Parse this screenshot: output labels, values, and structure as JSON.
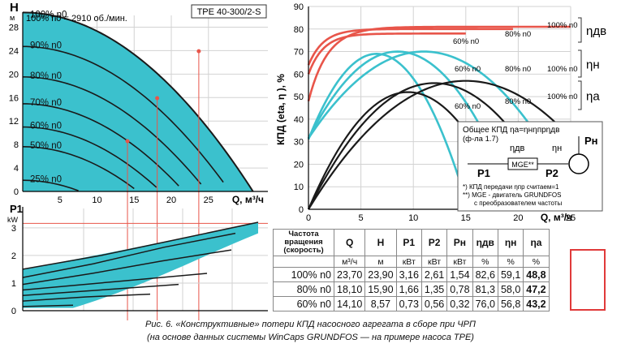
{
  "colors": {
    "teal": "#3bc1cd",
    "red": "#e8554a",
    "black": "#1a1a1a",
    "grid": "#d2d2d2",
    "highlight": "#e03a3a"
  },
  "head_chart": {
    "pump_label": "TPE 40-300/2-S",
    "speed_note": "100% n0 = 2910 об./мин.",
    "y_axis_label": "H",
    "y_axis_unit": "м",
    "x_axis_label": "Q, м³/ч",
    "x_ticks": [
      5,
      10,
      15,
      20,
      25
    ],
    "y_ticks": [
      0,
      4,
      8,
      12,
      16,
      20,
      24,
      28
    ],
    "curves": [
      {
        "label": "100% n0",
        "pct": 100,
        "h0": 30.5,
        "qmax": 31
      },
      {
        "label": "90% n0",
        "pct": 90,
        "h0": 24.7
      },
      {
        "label": "80% n0",
        "pct": 80,
        "h0": 19.5
      },
      {
        "label": "70% n0",
        "pct": 70,
        "h0": 14.9
      },
      {
        "label": "60% n0",
        "pct": 60,
        "h0": 11
      },
      {
        "label": "50% n0",
        "pct": 50,
        "h0": 7.6
      },
      {
        "label": "25% n0",
        "pct": 25,
        "h0": 1.9
      }
    ],
    "operating_points": [
      {
        "q": 23.7,
        "h": 23.9
      },
      {
        "q": 18.1,
        "h": 15.9
      },
      {
        "q": 14.1,
        "h": 8.57
      }
    ]
  },
  "power_chart": {
    "y_axis_label": "P1",
    "y_axis_unit": "kW",
    "y_ticks": [
      0,
      1,
      2,
      3
    ],
    "reference_power": 3.16
  },
  "eff_chart": {
    "y_axis_label": "КПД (eta, η ), %",
    "x_axis_label": "Q, м³/ч",
    "x_ticks": [
      0,
      5,
      10,
      15,
      20,
      25
    ],
    "y_ticks": [
      0,
      10,
      20,
      30,
      40,
      50,
      60,
      70,
      80,
      90
    ],
    "groups": [
      {
        "name": "ηдв",
        "color": "#e8554a",
        "curves": [
          {
            "pct": 60,
            "start": 60,
            "peak": 78
          },
          {
            "pct": 80,
            "start": 64,
            "peak": 80
          },
          {
            "pct": 100,
            "start": 48,
            "peak": 81
          }
        ]
      },
      {
        "name": "ηн",
        "color": "#3bc1cd",
        "curves": [
          {
            "pct": 60,
            "peak": 69
          },
          {
            "pct": 80,
            "peak": 70
          },
          {
            "pct": 100,
            "peak": 70
          }
        ]
      },
      {
        "name": "ηа",
        "color": "#1a1a1a",
        "curves": [
          {
            "pct": 60,
            "peak": 52
          },
          {
            "pct": 80,
            "peak": 56
          },
          {
            "pct": 100,
            "peak": 57
          }
        ]
      }
    ],
    "label_60": "60% n0",
    "label_80": "80% n0",
    "label_100": "100% n0",
    "eta_dv": "ηдв",
    "eta_n": "ηн",
    "eta_a": "ηа"
  },
  "schema": {
    "formula": "Общее КПД ηа=ηнηпрηдв",
    "formula_ref": "(ф-ла 1.7)",
    "eta_dv": "ηдв",
    "eta_n": "ηн",
    "p1": "P1",
    "p2": "P2",
    "pn": "Pн",
    "mge": "MGE**",
    "note1": "*) КПД передачи ηпр считаем=1",
    "note2": "**) MGE - двигатель GRUNDFOS",
    "note3": "с преобразователем частоты"
  },
  "table": {
    "header_row": "Частота вращения (скорость)",
    "headers": [
      "Q",
      "H",
      "P1",
      "P2",
      "Pн",
      "ηдв",
      "ηн",
      "ηа"
    ],
    "units": [
      "м³/ч",
      "м",
      "кВт",
      "кВт",
      "кВт",
      "%",
      "%",
      "%"
    ],
    "rows": [
      {
        "label": "100% n0",
        "values": [
          "23,70",
          "23,90",
          "3,16",
          "2,61",
          "1,54",
          "82,6",
          "59,1",
          "48,8"
        ]
      },
      {
        "label": "80% n0",
        "values": [
          "18,10",
          "15,90",
          "1,66",
          "1,35",
          "0,78",
          "81,3",
          "58,0",
          "47,2"
        ]
      },
      {
        "label": "60% n0",
        "values": [
          "14,10",
          "8,57",
          "0,73",
          "0,56",
          "0,32",
          "76,0",
          "56,8",
          "43,2"
        ]
      }
    ]
  },
  "caption": {
    "line1": "Рис. 6. «Конструктивные» потери КПД насосного агрегата в сборе при ЧРП",
    "line2": "(на основе данных системы WinCaps GRUNDFOS — на примере насоса TPE)"
  }
}
